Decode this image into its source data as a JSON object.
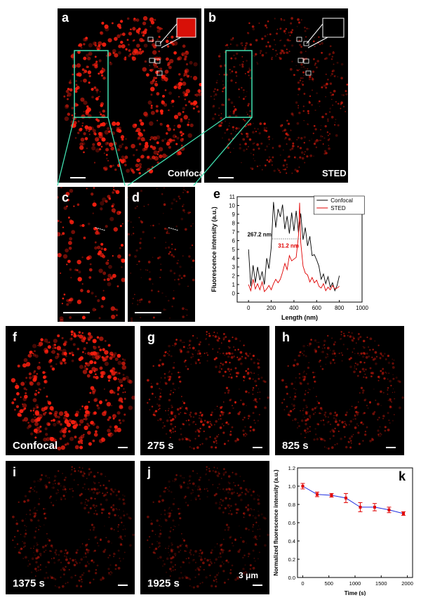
{
  "panels": {
    "a": {
      "label": "a",
      "caption": "Confocal"
    },
    "b": {
      "label": "b",
      "caption": "STED"
    },
    "c": {
      "label": "c"
    },
    "d": {
      "label": "d"
    },
    "e": {
      "label": "e"
    },
    "f": {
      "label": "f",
      "caption": "Confocal"
    },
    "g": {
      "label": "g",
      "caption": "275 s"
    },
    "h": {
      "label": "h",
      "caption": "825 s"
    },
    "i": {
      "label": "i",
      "caption": "1375 s"
    },
    "j": {
      "label": "j",
      "caption": "1925 s",
      "scale_text": "3 μm"
    },
    "k": {
      "label": "k"
    }
  },
  "colors": {
    "fluor": "#ff2010",
    "zoom_box": "#40e0b0",
    "confocal_line": "#000000",
    "sted_line": "#e00000",
    "decay_line": "#2030e0"
  },
  "chart_data": [
    {
      "type": "line",
      "xlabel": "Length (nm)",
      "ylabel": "Fluorescence intensity (a.u.)",
      "xlim": [
        -100,
        1000
      ],
      "ylim": [
        -1,
        11
      ],
      "xticks": [
        0,
        200,
        400,
        600,
        800,
        1000
      ],
      "yticks": [
        0,
        1,
        2,
        3,
        4,
        5,
        6,
        7,
        8,
        9,
        10,
        11
      ],
      "legend": "top-right",
      "annotations": [
        {
          "text": "267.2 nm",
          "color": "#000000"
        },
        {
          "text": "31.2 nm",
          "color": "#e00000"
        }
      ],
      "series": [
        {
          "name": "Confocal",
          "x": [
            0,
            20,
            40,
            60,
            80,
            100,
            120,
            140,
            160,
            180,
            200,
            220,
            240,
            260,
            280,
            300,
            320,
            340,
            360,
            380,
            400,
            420,
            440,
            460,
            480,
            500,
            520,
            540,
            560,
            580,
            600,
            620,
            640,
            660,
            680,
            700,
            720,
            740,
            760,
            780,
            800
          ],
          "y": [
            5,
            0.8,
            3.2,
            1.2,
            3,
            1.5,
            2.5,
            1,
            4,
            2.8,
            5.2,
            10.4,
            7.5,
            9.6,
            8.7,
            10.1,
            7.3,
            8.8,
            6.8,
            9.2,
            7.1,
            9.4,
            6.9,
            9.1,
            6.1,
            7.5,
            5.4,
            6.5,
            4.3,
            4.4,
            3.8,
            3.1,
            1.6,
            2.2,
            1.1,
            1.9,
            0.7,
            1.2,
            0.3,
            0.9,
            2
          ]
        },
        {
          "name": "STED",
          "x": [
            0,
            20,
            40,
            60,
            80,
            100,
            120,
            140,
            160,
            180,
            200,
            220,
            240,
            260,
            280,
            300,
            320,
            340,
            360,
            380,
            400,
            420,
            440,
            450,
            460,
            480,
            500,
            520,
            540,
            560,
            580,
            600,
            620,
            640,
            660,
            680,
            700,
            720,
            740,
            760,
            780,
            800
          ],
          "y": [
            1,
            0.3,
            1.6,
            0.5,
            1.1,
            0.4,
            1.3,
            0.2,
            0.5,
            0.9,
            0.4,
            1.1,
            1.6,
            1.2,
            1.6,
            2.4,
            3.4,
            2.7,
            4.3,
            3.7,
            3.9,
            4.1,
            6.6,
            10.3,
            5.8,
            3.1,
            2.3,
            2.1,
            1.3,
            1.8,
            1.2,
            1.5,
            0.8,
            0.6,
            1.1,
            0.3,
            0.7,
            0.4,
            0.9,
            0.5,
            0.6,
            0.8
          ]
        }
      ]
    },
    {
      "type": "line",
      "xlabel": "Time (s)",
      "ylabel": "Normalized fluorescence intensity (a.u.)",
      "xlim": [
        -100,
        2100
      ],
      "ylim": [
        0,
        1.2
      ],
      "xticks": [
        0,
        500,
        1000,
        1500,
        2000
      ],
      "yticks": [
        0.0,
        0.2,
        0.4,
        0.6,
        0.8,
        1.0,
        1.2
      ],
      "series": [
        {
          "x": [
            0,
            275,
            550,
            825,
            1100,
            1375,
            1650,
            1925
          ],
          "y": [
            1.0,
            0.91,
            0.9,
            0.87,
            0.77,
            0.77,
            0.74,
            0.7
          ],
          "err": [
            0.03,
            0.025,
            0.02,
            0.05,
            0.05,
            0.04,
            0.03,
            0.02
          ]
        }
      ]
    }
  ]
}
